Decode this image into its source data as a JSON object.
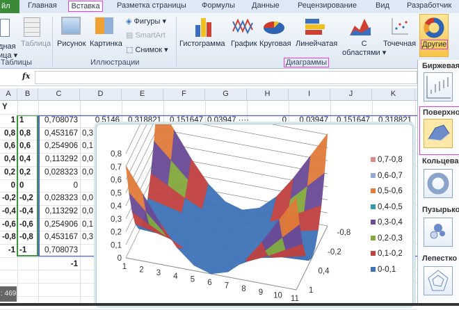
{
  "tabs": {
    "file": "йл",
    "items": [
      "Главная",
      "Вставка",
      "Разметка страницы",
      "Формулы",
      "Данные",
      "Рецензирование",
      "Вид",
      "Разработчик"
    ],
    "active": "Вставка"
  },
  "ribbon": {
    "tables": {
      "pivot": "дная",
      "pivot2": "ица",
      "table": "Таблица",
      "group": "Таблицы"
    },
    "illustrations": {
      "picture": "Рисунок",
      "clipart": "Картинка",
      "shapes": "Фигуры",
      "smartart": "SmartArt",
      "screenshot": "Снимок",
      "group": "Иллюстрации"
    },
    "charts": {
      "column": "Гистограмма",
      "line": "График",
      "pie": "Круговая",
      "bar": "Линейчатая",
      "area1": "С",
      "area2": "областями",
      "scatter": "Точечная",
      "other": "Другие",
      "group": "Диаграммы"
    }
  },
  "formula_bar": {
    "fx": "fx",
    "value": ""
  },
  "columns": [
    "A",
    "B",
    "C",
    "D",
    "E",
    "F",
    "G",
    "H",
    "I",
    "J",
    "K"
  ],
  "sheet": {
    "header_y": "Y",
    "rows": [
      {
        "a": "1",
        "b": "1",
        "c": "0,708073",
        "d": ""
      },
      {
        "a": "0,8",
        "b": "0,8",
        "c": "0,453167",
        "d": "0,3"
      },
      {
        "a": "0,6",
        "b": "0,6",
        "c": "0,254906",
        "d": "0,1"
      },
      {
        "a": "0,4",
        "b": "0,4",
        "c": "0,113292",
        "d": "0,0"
      },
      {
        "a": "0,2",
        "b": "0,2",
        "c": "0,028323",
        "d": "0,0"
      },
      {
        "a": "0",
        "b": "0",
        "c": "0",
        "d": ""
      },
      {
        "a": "-0,2",
        "b": "-0,2",
        "c": "0,028323",
        "d": "0,0"
      },
      {
        "a": "-0,4",
        "b": "-0,4",
        "c": "0,113292",
        "d": "0,0"
      },
      {
        "a": "-0,6",
        "b": "-0,6",
        "c": "0,254906",
        "d": "0,1"
      },
      {
        "a": "-0,8",
        "b": "-0,8",
        "c": "0,453167",
        "d": "0,3"
      },
      {
        "a": "-1",
        "b": "-1",
        "c": "0,708073",
        "d": ""
      }
    ],
    "first_row_rest": [
      "0,5146",
      "0,318821",
      "0,151647",
      "0,03947 ····",
      "0",
      "0,03947",
      "0,151647",
      "0,318821"
    ],
    "x_row_c": "-1"
  },
  "panel": {
    "stock": "Биржевая",
    "surface": "Поверхно",
    "doughnut": "Кольцева",
    "bubble": "Пузырько",
    "radar": "Лепестко"
  },
  "status": ": 469",
  "chart_data": {
    "type": "surface",
    "categories": [
      "1",
      "2",
      "3",
      "4",
      "5",
      "6",
      "7",
      "8",
      "9",
      "10",
      "11"
    ],
    "series_labels": [
      "1",
      "0,4",
      "-0,2",
      "-0,8"
    ],
    "series_y": [
      1,
      0.8,
      0.6,
      0.4,
      0.2,
      0,
      -0.2,
      -0.4,
      -0.6,
      -0.8,
      -1
    ],
    "zlim": [
      0,
      0.8
    ],
    "z_ticks": [
      "0",
      "0,1",
      "0,2",
      "0,3",
      "0,4",
      "0,5",
      "0,6",
      "0,7",
      "0,8"
    ],
    "legend": [
      {
        "label": "0,7-0,8",
        "color": "#d98c8c"
      },
      {
        "label": "0,6-0,7",
        "color": "#93a9d8"
      },
      {
        "label": "0,5-0,6",
        "color": "#e07b39"
      },
      {
        "label": "0,4-0,5",
        "color": "#3497ab"
      },
      {
        "label": "0,3-0,4",
        "color": "#6a4a96"
      },
      {
        "label": "0,2-0,3",
        "color": "#84a83e"
      },
      {
        "label": "0,1-0,2",
        "color": "#c0413f"
      },
      {
        "label": "0-0,1",
        "color": "#3f72b8"
      }
    ],
    "legend_position": "right",
    "values": [
      [
        0.7081,
        0.5146,
        0.3188,
        0.1516,
        0.0395,
        0,
        0.0395,
        0.1516,
        0.3188,
        0.5146,
        0.7081
      ],
      [
        0.4532,
        0.3293,
        0.204,
        0.0971,
        0.0253,
        0,
        0.0253,
        0.0971,
        0.204,
        0.3293,
        0.4532
      ],
      [
        0.2549,
        0.1853,
        0.1148,
        0.0546,
        0.0142,
        0,
        0.0142,
        0.0546,
        0.1148,
        0.1853,
        0.2549
      ],
      [
        0.1133,
        0.0823,
        0.051,
        0.0243,
        0.0063,
        0,
        0.0063,
        0.0243,
        0.051,
        0.0823,
        0.1133
      ],
      [
        0.0283,
        0.0206,
        0.0128,
        0.0061,
        0.0016,
        0,
        0.0016,
        0.0061,
        0.0128,
        0.0206,
        0.0283
      ],
      [
        0,
        0,
        0,
        0,
        0,
        0,
        0,
        0,
        0,
        0,
        0
      ],
      [
        0.0283,
        0.0206,
        0.0128,
        0.0061,
        0.0016,
        0,
        0.0016,
        0.0061,
        0.0128,
        0.0206,
        0.0283
      ],
      [
        0.1133,
        0.0823,
        0.051,
        0.0243,
        0.0063,
        0,
        0.0063,
        0.0243,
        0.051,
        0.0823,
        0.1133
      ],
      [
        0.2549,
        0.1853,
        0.1148,
        0.0546,
        0.0142,
        0,
        0.0142,
        0.0546,
        0.1148,
        0.1853,
        0.2549
      ],
      [
        0.4532,
        0.3293,
        0.204,
        0.0971,
        0.0253,
        0,
        0.0253,
        0.0971,
        0.204,
        0.3293,
        0.4532
      ],
      [
        0.7081,
        0.5146,
        0.3188,
        0.1516,
        0.0395,
        0,
        0.0395,
        0.1516,
        0.3188,
        0.5146,
        0.7081
      ]
    ]
  }
}
